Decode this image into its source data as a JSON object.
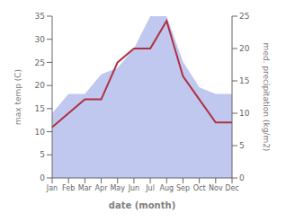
{
  "chart_data": {
    "type": "line",
    "categories": [
      "Jan",
      "Feb",
      "Mar",
      "Apr",
      "May",
      "Jun",
      "Jul",
      "Aug",
      "Sep",
      "Oct",
      "Nov",
      "Dec"
    ],
    "series": [
      {
        "type": "area",
        "axis": "y2",
        "color": "#c0c8f0",
        "values": [
          10,
          13,
          13,
          16,
          17,
          20,
          25,
          25,
          18,
          14,
          13,
          13
        ]
      },
      {
        "type": "line",
        "color": "#b03040",
        "values": [
          11,
          14,
          17,
          17,
          25,
          28,
          28,
          34,
          22,
          17,
          12,
          12
        ]
      }
    ],
    "xlabel": "date (month)",
    "ylabel": "max temp (C)",
    "y2label": "med. precipitation (kg/m2)",
    "ylim": [
      0,
      35
    ],
    "yticks": [
      0,
      5,
      10,
      15,
      20,
      25,
      30,
      35
    ],
    "y2lim": [
      0,
      25
    ],
    "y2ticks": [
      0,
      5,
      10,
      15,
      20,
      25
    ]
  }
}
